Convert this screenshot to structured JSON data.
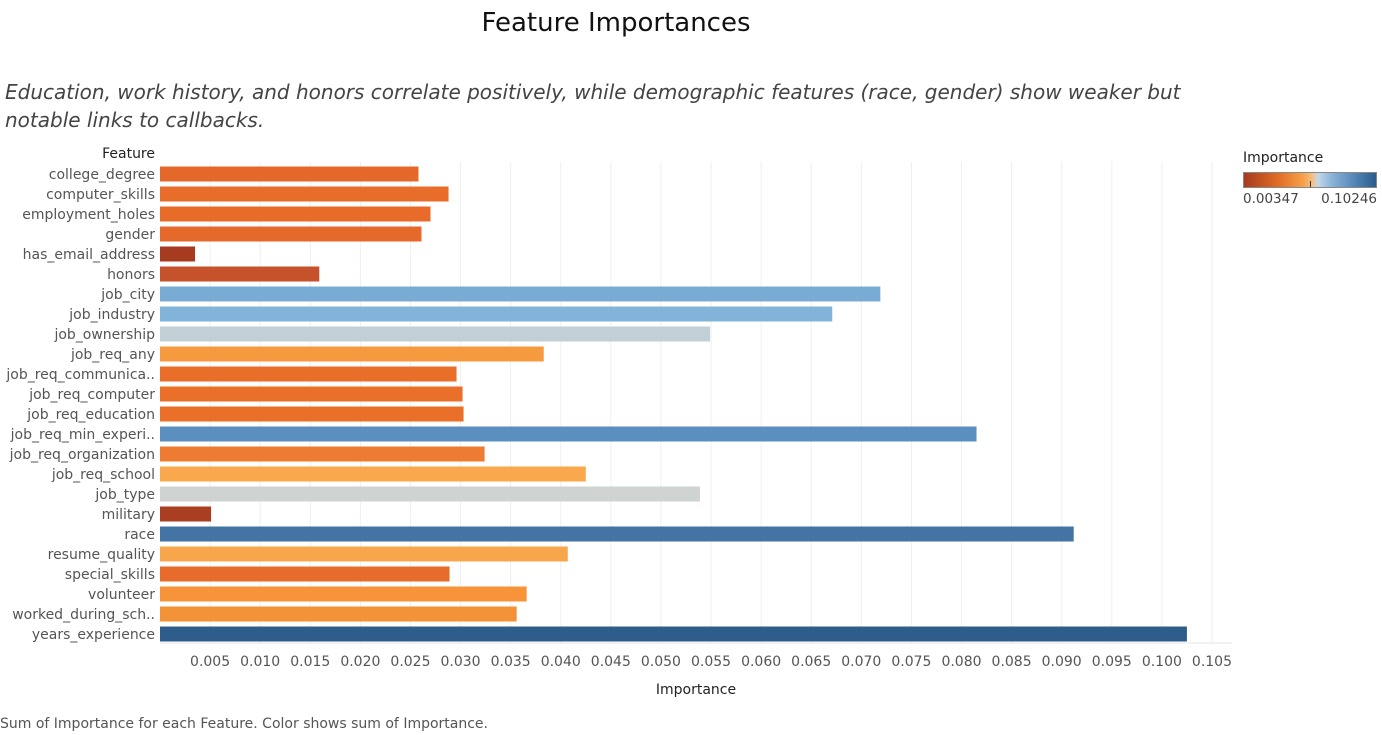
{
  "chart_data": {
    "type": "bar",
    "orientation": "horizontal",
    "title": "Feature Importances",
    "subtitle": "Education, work history, and honors correlate positively, while demographic features (race, gender) show weaker but notable links to callbacks.",
    "ylabel": "Feature",
    "xlabel": "Importance",
    "caption": "Sum of Importance for each Feature.  Color shows sum of Importance.",
    "categories": [
      "college_degree",
      "computer_skills",
      "employment_holes",
      "gender",
      "has_email_address",
      "honors",
      "job_city",
      "job_industry",
      "job_ownership",
      "job_req_any",
      "job_req_communica..",
      "job_req_computer",
      "job_req_education",
      "job_req_min_experi..",
      "job_req_organization",
      "job_req_school",
      "job_type",
      "military",
      "race",
      "resume_quality",
      "special_skills",
      "volunteer",
      "worked_during_sch..",
      "years_experience"
    ],
    "values": [
      0.0258,
      0.0288,
      0.027,
      0.0261,
      0.0035,
      0.0159,
      0.0719,
      0.0671,
      0.0549,
      0.0383,
      0.0296,
      0.0302,
      0.0303,
      0.0815,
      0.0324,
      0.0425,
      0.0539,
      0.0051,
      0.0912,
      0.0407,
      0.0289,
      0.0366,
      0.0356,
      0.1025
    ],
    "colors": [
      "#e4682a",
      "#e96d2a",
      "#e86b2a",
      "#e5692a",
      "#a63b1f",
      "#c5522a",
      "#79acd5",
      "#82b3d9",
      "#c0d0d6",
      "#f59a3f",
      "#e96e2a",
      "#ea702a",
      "#ea702a",
      "#5b8fc0",
      "#ed7b31",
      "#f9a84e",
      "#cfd3d1",
      "#aa3e21",
      "#4374a3",
      "#f8a64c",
      "#e76b2a",
      "#f7943a",
      "#f39236",
      "#2e5d8c"
    ],
    "xlim": [
      0,
      0.107
    ],
    "xticks": [
      "0.005",
      "0.010",
      "0.015",
      "0.020",
      "0.025",
      "0.030",
      "0.035",
      "0.040",
      "0.045",
      "0.050",
      "0.055",
      "0.060",
      "0.065",
      "0.070",
      "0.075",
      "0.080",
      "0.085",
      "0.090",
      "0.095",
      "0.100",
      "0.105"
    ],
    "grid": true,
    "legend": {
      "title": "Importance",
      "min_label": "0.00347",
      "max_label": "0.10246",
      "placement": "top-right"
    }
  }
}
